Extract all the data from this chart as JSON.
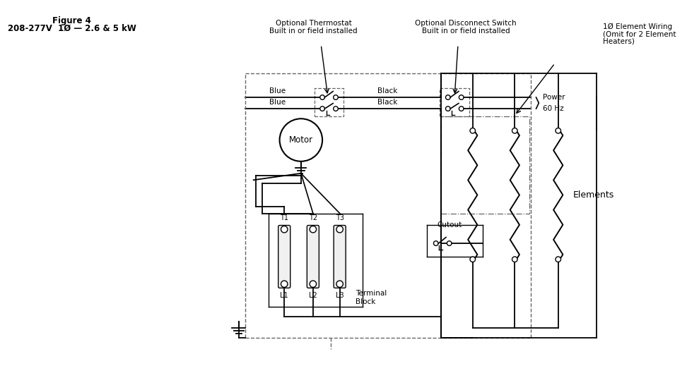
{
  "title_line1": "Figure 4",
  "title_line2": "208-277V  1Ø — 2.6 & 5 kW",
  "bg_color": "#ffffff",
  "lc": "#000000",
  "dc": "#666666",
  "label_thermostat": [
    "Optional Thermostat",
    "Built in or field installed"
  ],
  "label_disconnect": [
    "Optional Disconnect Switch",
    "Built in or field installed"
  ],
  "label_power": [
    "Power",
    "60 Hz"
  ],
  "label_1ph": [
    "1Ø Element Wiring",
    "(Omit for 2 Element",
    "Heaters)"
  ],
  "label_elements": "Elements",
  "label_motor": "Motor",
  "label_cutout": "Cutout",
  "label_terminal": [
    "Terminal",
    "Block"
  ],
  "terminal_labels": [
    "T1",
    "T2",
    "T3"
  ],
  "line_labels": [
    "L1",
    "L2",
    "L3"
  ]
}
